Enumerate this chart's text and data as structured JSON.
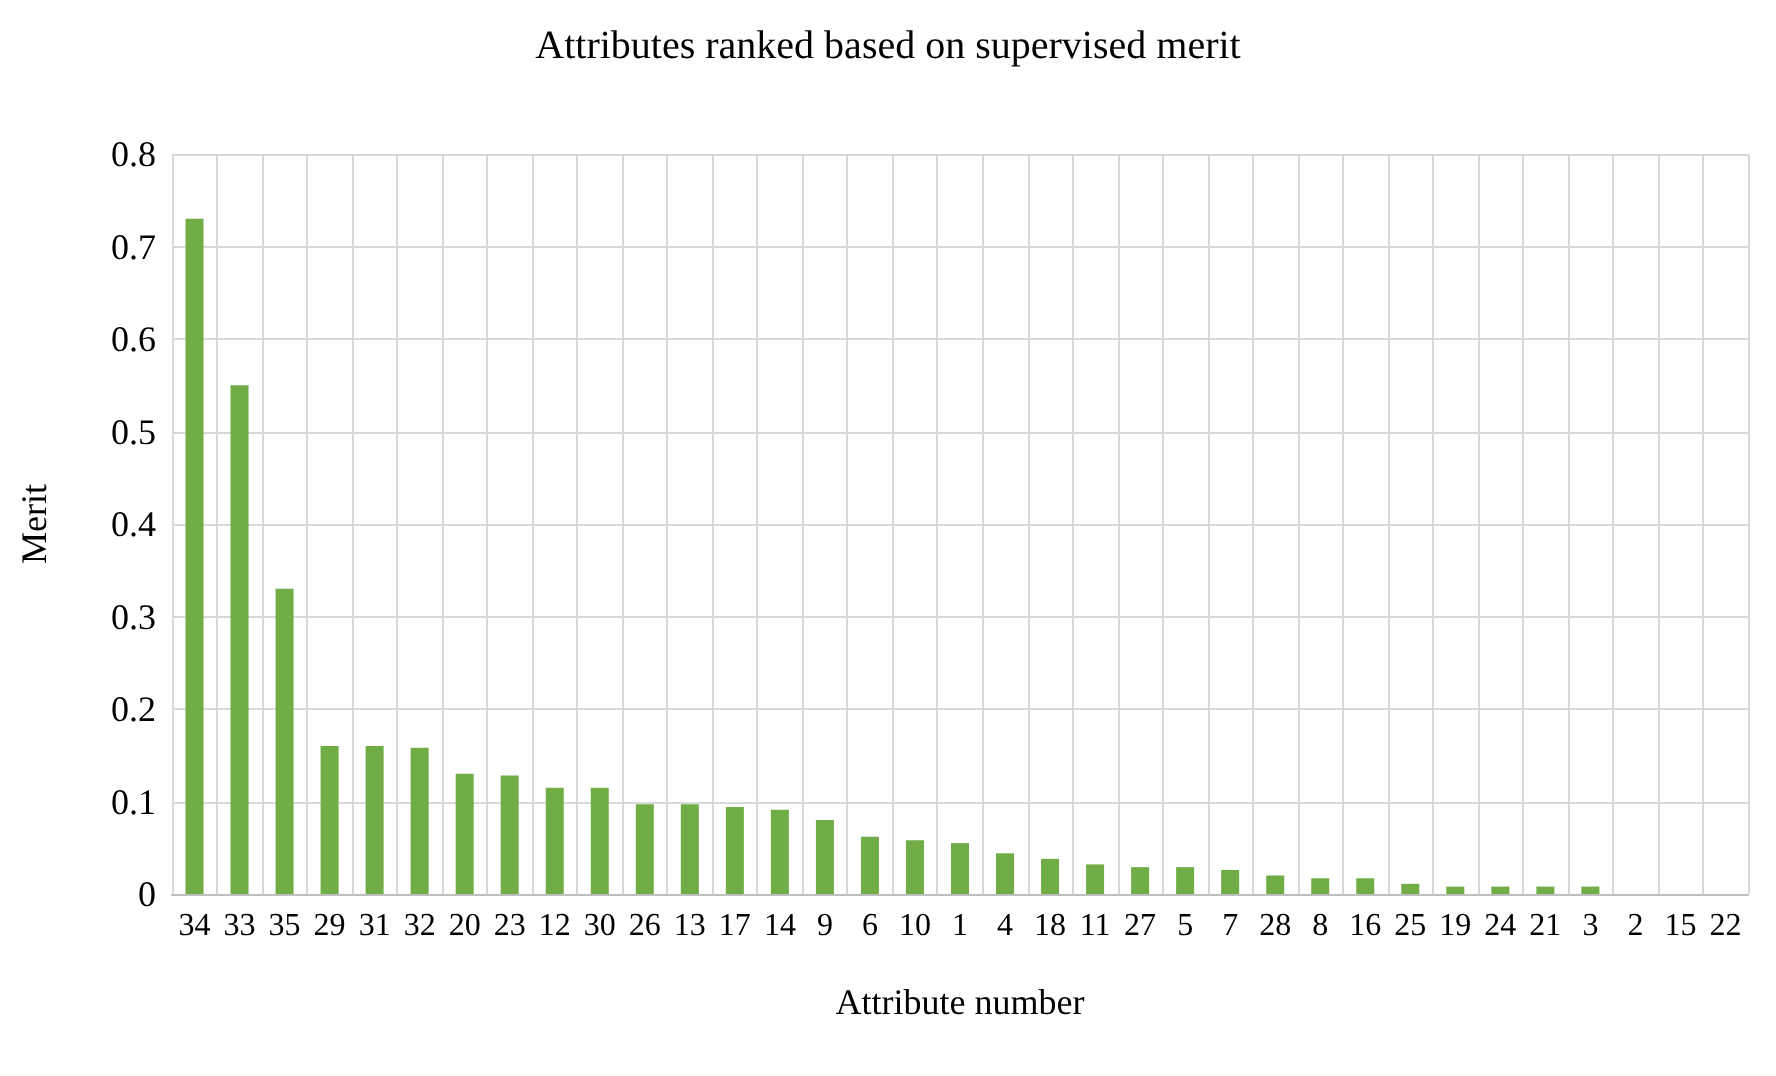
{
  "chart_data": {
    "type": "bar",
    "title": "Attributes ranked based on supervised merit",
    "xlabel": "Attribute number",
    "ylabel": "Merit",
    "categories": [
      "34",
      "33",
      "35",
      "29",
      "31",
      "32",
      "20",
      "23",
      "12",
      "30",
      "26",
      "13",
      "17",
      "14",
      "9",
      "6",
      "10",
      "1",
      "4",
      "18",
      "11",
      "27",
      "5",
      "7",
      "28",
      "8",
      "16",
      "25",
      "19",
      "24",
      "21",
      "3",
      "2",
      "15",
      "22"
    ],
    "values": [
      0.73,
      0.55,
      0.33,
      0.16,
      0.16,
      0.158,
      0.13,
      0.128,
      0.115,
      0.115,
      0.097,
      0.097,
      0.094,
      0.091,
      0.08,
      0.062,
      0.058,
      0.055,
      0.044,
      0.038,
      0.032,
      0.029,
      0.029,
      0.026,
      0.02,
      0.017,
      0.017,
      0.011,
      0.008,
      0.008,
      0.008,
      0.008,
      0,
      0,
      0
    ],
    "color": "#70ad47",
    "ylim": [
      0,
      0.8
    ],
    "yticks": [
      0,
      0.1,
      0.2,
      0.3,
      0.4,
      0.5,
      0.6,
      0.7,
      0.8
    ],
    "grid": true
  }
}
